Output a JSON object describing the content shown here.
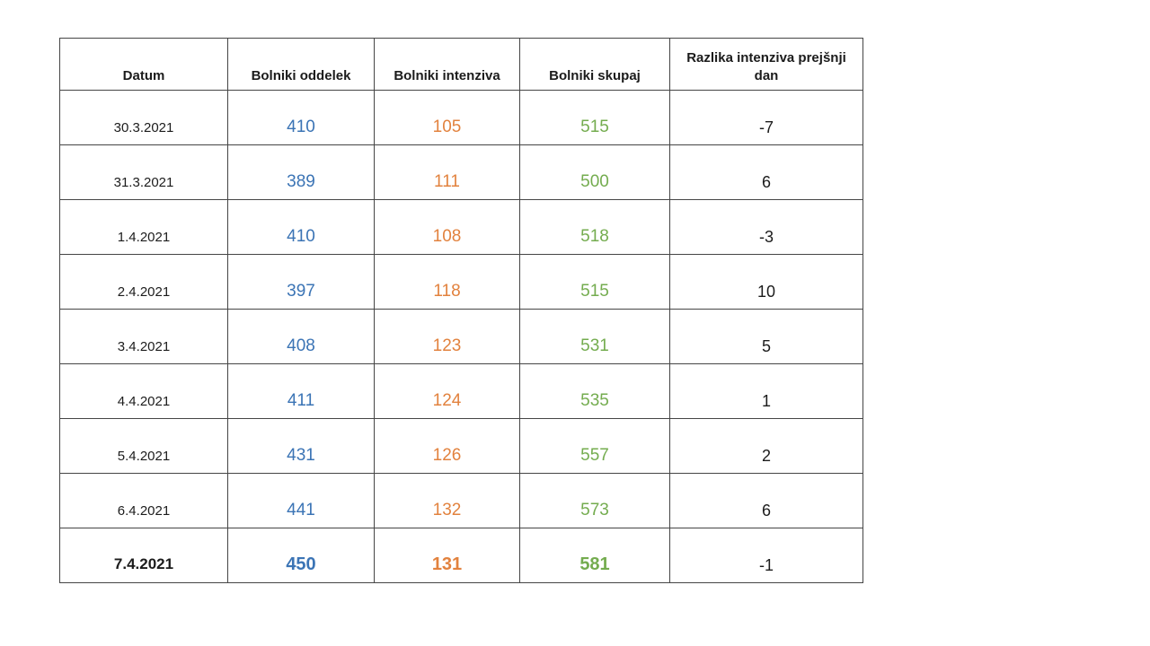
{
  "chart_data": {
    "type": "table",
    "columns": [
      "Datum",
      "Bolniki oddelek",
      "Bolniki intenziva",
      "Bolniki skupaj",
      "Razlika intenziva prejšnji dan"
    ],
    "rows": [
      {
        "datum": "30.3.2021",
        "oddelek": "410",
        "intenziva": "105",
        "skupaj": "515",
        "razlika": "-7"
      },
      {
        "datum": "31.3.2021",
        "oddelek": "389",
        "intenziva": "111",
        "skupaj": "500",
        "razlika": "6"
      },
      {
        "datum": "1.4.2021",
        "oddelek": "410",
        "intenziva": "108",
        "skupaj": "518",
        "razlika": "-3"
      },
      {
        "datum": "2.4.2021",
        "oddelek": "397",
        "intenziva": "118",
        "skupaj": "515",
        "razlika": "10"
      },
      {
        "datum": "3.4.2021",
        "oddelek": "408",
        "intenziva": "123",
        "skupaj": "531",
        "razlika": "5"
      },
      {
        "datum": "4.4.2021",
        "oddelek": "411",
        "intenziva": "124",
        "skupaj": "535",
        "razlika": "1"
      },
      {
        "datum": "5.4.2021",
        "oddelek": "431",
        "intenziva": "126",
        "skupaj": "557",
        "razlika": "2"
      },
      {
        "datum": "6.4.2021",
        "oddelek": "441",
        "intenziva": "132",
        "skupaj": "573",
        "razlika": "6"
      },
      {
        "datum": "7.4.2021",
        "oddelek": "450",
        "intenziva": "131",
        "skupaj": "581",
        "razlika": "-1"
      }
    ],
    "colors": {
      "oddelek": "#3b74b5",
      "intenziva": "#e2823e",
      "skupaj": "#74ac4f",
      "text": "#1c1c1c",
      "border": "#454545"
    }
  }
}
